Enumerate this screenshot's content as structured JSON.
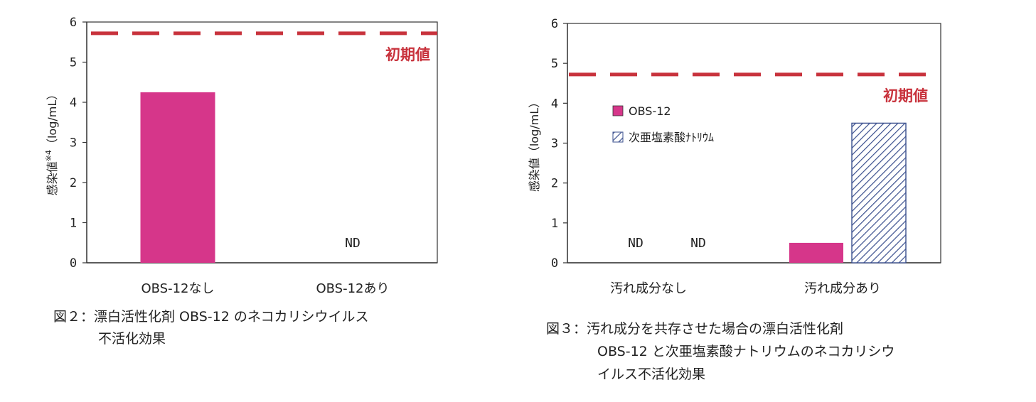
{
  "colors": {
    "bar_pink": "#d6368a",
    "reference_red": "#c8323c",
    "hatch_blue": "#3a4f8e",
    "axis": "#333333"
  },
  "chart_data": [
    {
      "type": "bar",
      "categories": [
        "OBS-12なし",
        "OBS-12あり"
      ],
      "series": [
        {
          "values": [
            4.25,
            null
          ],
          "color": "#d6368a"
        }
      ],
      "ylabel_main": "感染値",
      "ylabel_sup": "※4",
      "ylabel_unit": "（log/mL）",
      "ylim": [
        0,
        6
      ],
      "yticks": [
        "0",
        "1",
        "2",
        "3",
        "4",
        "5",
        "6"
      ],
      "reference_line": {
        "value": 5.72,
        "label": "初期値",
        "style": "dashed"
      },
      "nd_labels": [
        {
          "category": 1,
          "text": "ND"
        }
      ],
      "legend": null,
      "caption": [
        "図２：漂白活性化剤 OBS-12 のネコカリシウイルス",
        "不活化効果"
      ]
    },
    {
      "type": "bar",
      "categories": [
        "汚れ成分なし",
        "汚れ成分あり"
      ],
      "series": [
        {
          "name": "OBS-12",
          "values": [
            null,
            0.5
          ],
          "color": "#d6368a",
          "pattern": "solid"
        },
        {
          "name": "次亜塩素酸ﾅﾄﾘｳﾑ",
          "values": [
            null,
            3.5
          ],
          "color": "#3a4f8e",
          "pattern": "hatched"
        }
      ],
      "ylabel_main": "感染値",
      "ylabel_unit": "（log/mL）",
      "ylim": [
        0,
        6
      ],
      "yticks": [
        "0",
        "1",
        "2",
        "3",
        "4",
        "5",
        "6"
      ],
      "reference_line": {
        "value": 4.72,
        "label": "初期値",
        "style": "dashed"
      },
      "nd_labels": [
        {
          "category": 0,
          "series": 0,
          "text": "ND"
        },
        {
          "category": 0,
          "series": 1,
          "text": "ND"
        }
      ],
      "legend": {
        "placement": "upper-left"
      },
      "caption": [
        "図３：汚れ成分を共存させた場合の漂白活性化剤",
        "OBS-12 と次亜塩素酸ナトリウムのネコカリシウ",
        "イルス不活化効果"
      ]
    }
  ]
}
